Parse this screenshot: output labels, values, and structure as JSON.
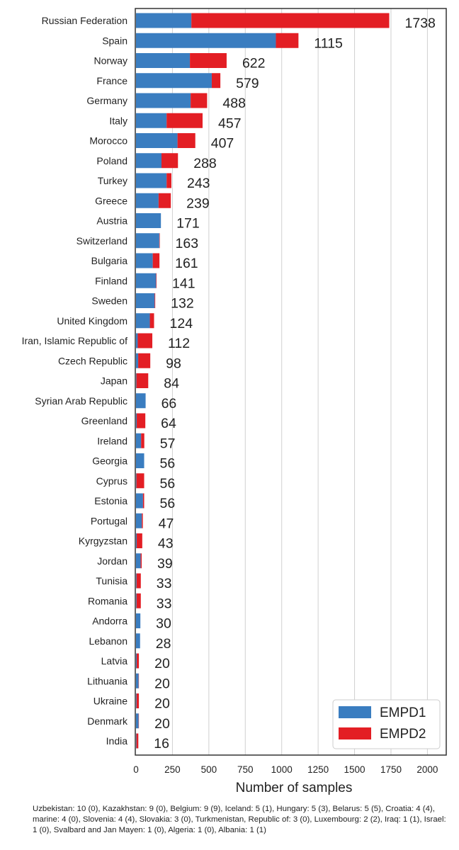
{
  "chart_data": {
    "type": "bar",
    "orientation": "horizontal",
    "stacked": true,
    "xlabel": "Number of samples",
    "ylabel": "",
    "title": "",
    "xlim": [
      0,
      2100
    ],
    "xticks": [
      0,
      250,
      500,
      750,
      1000,
      1250,
      1500,
      1750,
      2000
    ],
    "grid": "vertical",
    "legend_position": "bottom-right",
    "categories": [
      "Russian Federation",
      "Spain",
      "Norway",
      "France",
      "Germany",
      "Italy",
      "Morocco",
      "Poland",
      "Turkey",
      "Greece",
      "Austria",
      "Switzerland",
      "Bulgaria",
      "Finland",
      "Sweden",
      "United Kingdom",
      "Iran, Islamic Republic of",
      "Czech Republic",
      "Japan",
      "Syrian Arab Republic",
      "Greenland",
      "Ireland",
      "Georgia",
      "Cyprus",
      "Estonia",
      "Portugal",
      "Kyrgyzstan",
      "Jordan",
      "Tunisia",
      "Romania",
      "Andorra",
      "Lebanon",
      "Latvia",
      "Lithuania",
      "Ukraine",
      "Denmark",
      "India"
    ],
    "totals": [
      1738,
      1115,
      622,
      579,
      488,
      457,
      407,
      288,
      243,
      239,
      171,
      163,
      161,
      141,
      132,
      124,
      112,
      98,
      84,
      66,
      64,
      57,
      56,
      56,
      56,
      47,
      43,
      39,
      33,
      33,
      30,
      28,
      20,
      20,
      20,
      20,
      16
    ],
    "series": [
      {
        "name": "EMPD1",
        "color": "#3a7dc0",
        "values": [
          380,
          960,
          370,
          520,
          375,
          210,
          285,
          175,
          210,
          155,
          171,
          160,
          115,
          138,
          128,
          95,
          12,
          15,
          3,
          66,
          5,
          35,
          56,
          3,
          48,
          40,
          5,
          32,
          4,
          4,
          30,
          28,
          5,
          18,
          4,
          18,
          3
        ]
      },
      {
        "name": "EMPD2",
        "color": "#e31e24",
        "values": [
          1358,
          155,
          252,
          59,
          113,
          247,
          122,
          113,
          33,
          84,
          0,
          3,
          46,
          3,
          4,
          29,
          100,
          83,
          81,
          0,
          59,
          22,
          0,
          53,
          8,
          7,
          38,
          7,
          29,
          29,
          0,
          0,
          15,
          2,
          16,
          2,
          13
        ]
      }
    ]
  },
  "footnote": "Uzbekistan: 10 (0),   Kazakhstan: 9 (0),   Belgium: 9 (9),   Iceland: 5 (1),   Hungary: 5 (3),   Belarus: 5 (5),   Croatia: 4 (4),   marine: 4 (0),   Slovenia: 4 (4),   Slovakia: 3 (0),   Turkmenistan, Republic of: 3 (0),   Luxembourg: 2 (2),   Iraq: 1 (1),   Israel: 1 (0),   Svalbard and Jan Mayen: 1 (0),   Algeria: 1 (0),   Albania: 1 (1)"
}
